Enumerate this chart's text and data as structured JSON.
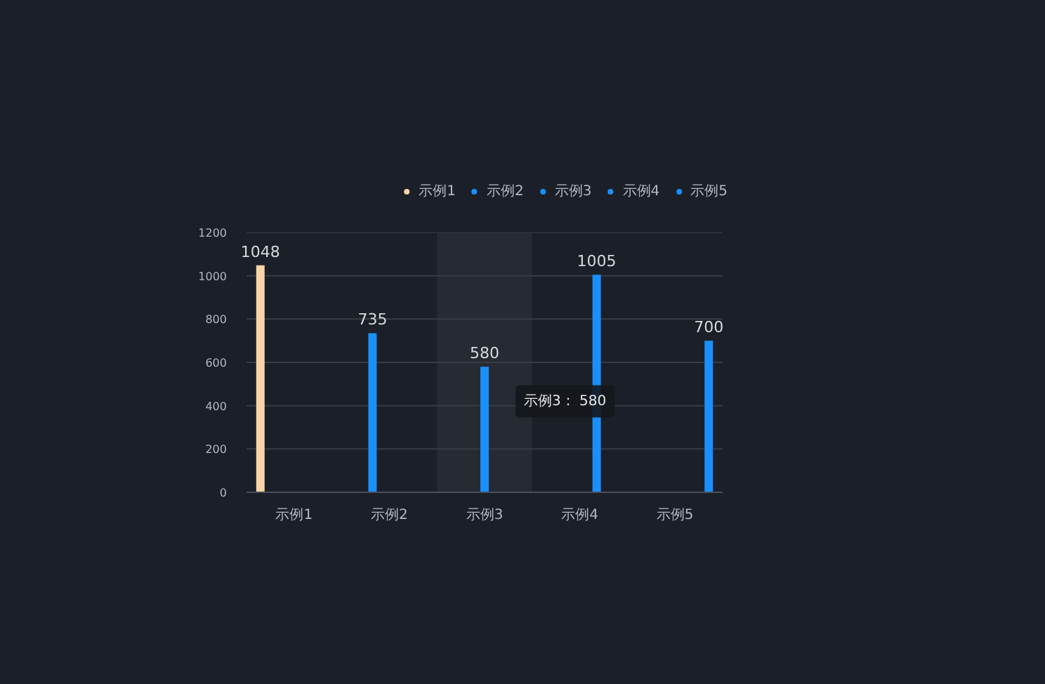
{
  "chart_data": {
    "type": "bar",
    "categories": [
      "示例1",
      "示例2",
      "示例3",
      "示例4",
      "示例5"
    ],
    "series": [
      {
        "name": "示例1",
        "color": "#f8d4a6",
        "values": [
          1048,
          null,
          null,
          null,
          null
        ]
      },
      {
        "name": "示例2",
        "color": "#1890ff",
        "values": [
          null,
          735,
          null,
          null,
          null
        ]
      },
      {
        "name": "示例3",
        "color": "#1890ff",
        "values": [
          null,
          null,
          580,
          null,
          null
        ]
      },
      {
        "name": "示例4",
        "color": "#1890ff",
        "values": [
          null,
          null,
          null,
          1005,
          null
        ]
      },
      {
        "name": "示例5",
        "color": "#1890ff",
        "values": [
          null,
          null,
          null,
          null,
          700
        ]
      }
    ],
    "ylim": [
      0,
      1200
    ],
    "yticks": [
      0,
      200,
      400,
      600,
      800,
      1000,
      1200
    ],
    "grid": "y",
    "legend": "top right",
    "data_labels": true,
    "bands": [
      {
        "axis": "x",
        "from": "示例3",
        "to": "示例3",
        "color": "#262b33"
      }
    ],
    "annotations": [
      {
        "text": "示例3： 580",
        "x": "示例3",
        "y": 420
      }
    ]
  }
}
